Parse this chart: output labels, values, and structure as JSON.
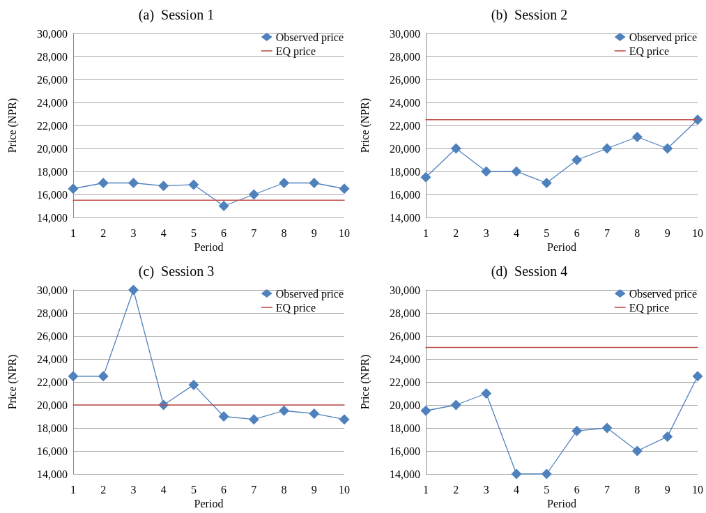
{
  "chart_data": [
    {
      "type": "line",
      "title": "(a)  Session 1",
      "xlabel": "Period",
      "ylabel": "Price (NPR)",
      "categories": [
        "1",
        "2",
        "3",
        "4",
        "5",
        "6",
        "7",
        "8",
        "9",
        "10"
      ],
      "ylim": [
        14000,
        30000
      ],
      "yticks": [
        {
          "value": 14000,
          "label": "14,000"
        },
        {
          "value": 16000,
          "label": "16,000"
        },
        {
          "value": 18000,
          "label": "18,000"
        },
        {
          "value": 20000,
          "label": "20,000"
        },
        {
          "value": 22000,
          "label": "22,000"
        },
        {
          "value": 24000,
          "label": "24,000"
        },
        {
          "value": 26000,
          "label": "26,000"
        },
        {
          "value": 28000,
          "label": "28,000"
        },
        {
          "value": 30000,
          "label": "30,000"
        }
      ],
      "grid": "y",
      "legend": "top right",
      "marker": "diamond",
      "series": [
        {
          "name": "Observed price",
          "color": "#4f81bd",
          "values": [
            16500,
            17000,
            17000,
            16750,
            16850,
            15000,
            16000,
            17000,
            17000,
            16500
          ]
        },
        {
          "name": "EQ price",
          "color": "#c0504d",
          "marker": "none",
          "values": [
            15500,
            15500,
            15500,
            15500,
            15500,
            15500,
            15500,
            15500,
            15500,
            15500
          ]
        }
      ]
    },
    {
      "type": "line",
      "title": "(b)  Session 2",
      "xlabel": "Period",
      "ylabel": "Price (NPR)",
      "categories": [
        "1",
        "2",
        "3",
        "4",
        "5",
        "6",
        "7",
        "8",
        "9",
        "10"
      ],
      "ylim": [
        14000,
        30000
      ],
      "yticks": [
        {
          "value": 14000,
          "label": "14,000"
        },
        {
          "value": 16000,
          "label": "16,000"
        },
        {
          "value": 18000,
          "label": "18,000"
        },
        {
          "value": 20000,
          "label": "20,000"
        },
        {
          "value": 22000,
          "label": "22,000"
        },
        {
          "value": 24000,
          "label": "24,000"
        },
        {
          "value": 26000,
          "label": "26,000"
        },
        {
          "value": 28000,
          "label": "28,000"
        },
        {
          "value": 30000,
          "label": "30,000"
        }
      ],
      "grid": "y",
      "legend": "top right",
      "marker": "diamond",
      "series": [
        {
          "name": "Observed price",
          "color": "#4f81bd",
          "values": [
            17500,
            20000,
            18000,
            18000,
            17000,
            19000,
            20000,
            21000,
            20000,
            22500
          ]
        },
        {
          "name": "EQ price",
          "color": "#c0504d",
          "marker": "none",
          "values": [
            22500,
            22500,
            22500,
            22500,
            22500,
            22500,
            22500,
            22500,
            22500,
            22500
          ]
        }
      ]
    },
    {
      "type": "line",
      "title": "(c)  Session 3",
      "xlabel": "Period",
      "ylabel": "Price (NPR)",
      "categories": [
        "1",
        "2",
        "3",
        "4",
        "5",
        "6",
        "7",
        "8",
        "9",
        "10"
      ],
      "ylim": [
        14000,
        30000
      ],
      "yticks": [
        {
          "value": 14000,
          "label": "14,000"
        },
        {
          "value": 16000,
          "label": "16,000"
        },
        {
          "value": 18000,
          "label": "18,000"
        },
        {
          "value": 20000,
          "label": "20,000"
        },
        {
          "value": 22000,
          "label": "22,000"
        },
        {
          "value": 24000,
          "label": "24,000"
        },
        {
          "value": 26000,
          "label": "26,000"
        },
        {
          "value": 28000,
          "label": "28,000"
        },
        {
          "value": 30000,
          "label": "30,000"
        }
      ],
      "grid": "y",
      "legend": "top right",
      "marker": "diamond",
      "series": [
        {
          "name": "Observed price",
          "color": "#4f81bd",
          "values": [
            22500,
            22500,
            30000,
            20000,
            21750,
            19000,
            18750,
            19500,
            19250,
            18750
          ]
        },
        {
          "name": "EQ price",
          "color": "#c0504d",
          "marker": "none",
          "values": [
            20000,
            20000,
            20000,
            20000,
            20000,
            20000,
            20000,
            20000,
            20000,
            20000
          ]
        }
      ]
    },
    {
      "type": "line",
      "title": "(d)  Session 4",
      "xlabel": "Period",
      "ylabel": "Price (NPR)",
      "categories": [
        "1",
        "2",
        "3",
        "4",
        "5",
        "6",
        "7",
        "8",
        "9",
        "10"
      ],
      "ylim": [
        14000,
        30000
      ],
      "yticks": [
        {
          "value": 14000,
          "label": "14,000"
        },
        {
          "value": 16000,
          "label": "16,000"
        },
        {
          "value": 18000,
          "label": "18,000"
        },
        {
          "value": 20000,
          "label": "20,000"
        },
        {
          "value": 22000,
          "label": "22,000"
        },
        {
          "value": 24000,
          "label": "24,000"
        },
        {
          "value": 26000,
          "label": "26,000"
        },
        {
          "value": 28000,
          "label": "28,000"
        },
        {
          "value": 30000,
          "label": "30,000"
        }
      ],
      "grid": "y",
      "legend": "top right",
      "marker": "diamond",
      "series": [
        {
          "name": "Observed price",
          "color": "#4f81bd",
          "values": [
            19500,
            20000,
            21000,
            14000,
            14000,
            17750,
            18000,
            16000,
            17250,
            22500
          ]
        },
        {
          "name": "EQ price",
          "color": "#c0504d",
          "marker": "none",
          "values": [
            25000,
            25000,
            25000,
            25000,
            25000,
            25000,
            25000,
            25000,
            25000,
            25000
          ]
        }
      ]
    }
  ]
}
